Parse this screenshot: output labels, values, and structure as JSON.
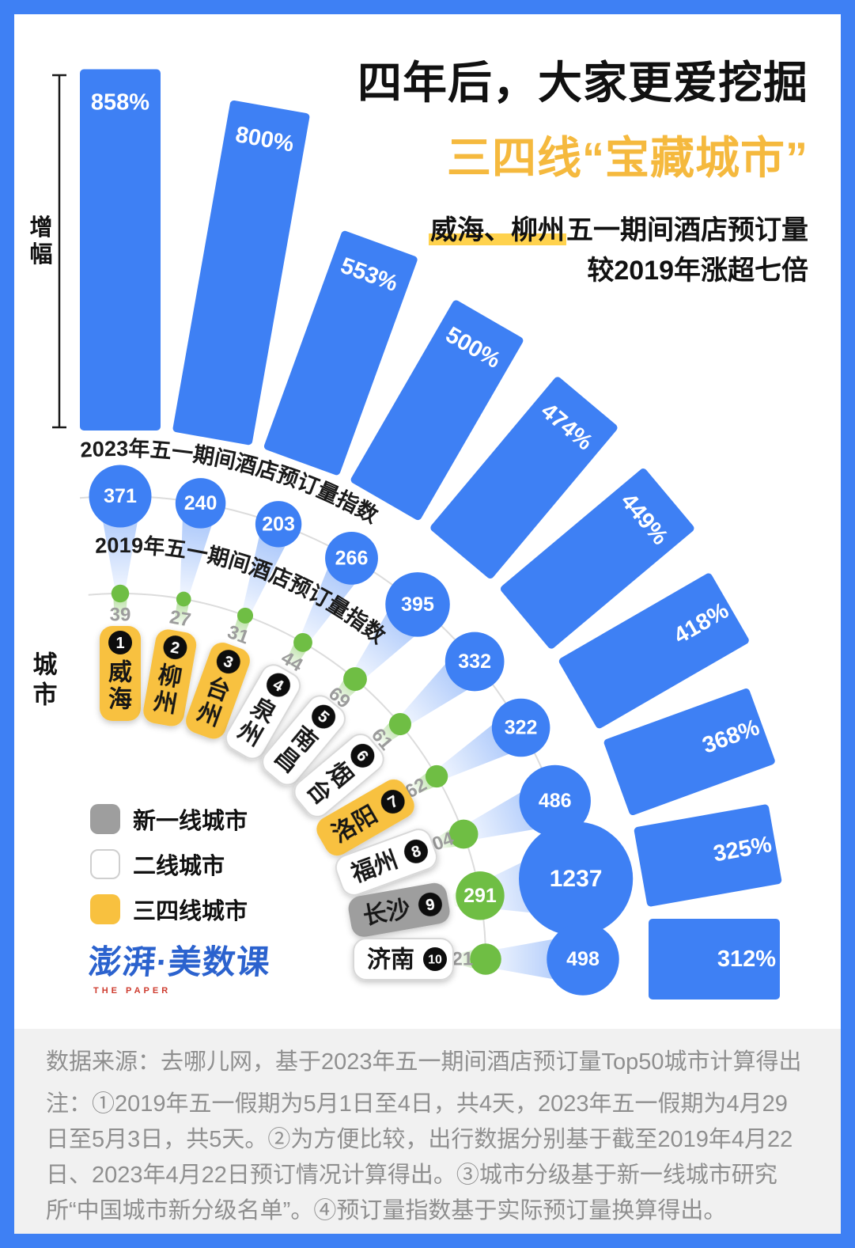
{
  "header": {
    "title_line1": "四年后，大家更爱挖掘",
    "title_line2": "三四线“宝藏城市”",
    "subtitle_highlight": "威海、柳州",
    "subtitle_line1_rest": "五一期间酒店预订量",
    "subtitle_line2": "较2019年涨超七倍"
  },
  "axis": {
    "growth_label": "增幅",
    "city_label": "城市",
    "arc_2023_label": "2023年五一期间酒店预订量指数",
    "arc_2019_label": "2019年五一期间酒店预订量指数"
  },
  "legend": [
    {
      "label": "新一线城市",
      "color": "#9E9E9E",
      "border": ""
    },
    {
      "label": "二线城市",
      "color": "#FFFFFF",
      "border": "#CFCFCF"
    },
    {
      "label": "三四线城市",
      "color": "#F8C13F",
      "border": ""
    }
  ],
  "logo": {
    "text": "澎湃·美数课",
    "sub": "THE PAPER"
  },
  "footer": {
    "source_line": "数据来源：去哪儿网，基于2023年五一期间酒店预订量Top50城市计算得出",
    "note_line": "注：①2019年五一假期为5月1日至4日，共4天，2023年五一假期为4月29日至5月3日，共5天。②为方便比较，出行数据分别基于截至2019年4月22日、2023年4月22日预订情况计算得出。③城市分级基于新一线城市研究所“中国城市新分级名单”。④预订量指数基于实际预订量换算得出。"
  },
  "colors": {
    "blue": "#3E80F4",
    "green": "#6FBE44",
    "yellow": "#F8C13F",
    "gray_pill": "#9E9E9E",
    "title_yellow": "#F5B93E",
    "highlight": "#FFD24D",
    "arc_line": "#DCDCDC",
    "gray_value_label": "#9C9C9C"
  },
  "chart_data": {
    "type": "radial-fan-bar",
    "growth_unit": "%",
    "cities": [
      {
        "rank": 1,
        "name": "威海",
        "tier": "tier34",
        "growth_pct": 858,
        "index_2023": 371,
        "index_2019": 39
      },
      {
        "rank": 2,
        "name": "柳州",
        "tier": "tier34",
        "growth_pct": 800,
        "index_2023": 240,
        "index_2019": 27
      },
      {
        "rank": 3,
        "name": "台州",
        "tier": "tier34",
        "growth_pct": 553,
        "index_2023": 203,
        "index_2019": 31
      },
      {
        "rank": 4,
        "name": "泉州",
        "tier": "tier2",
        "growth_pct": 500,
        "index_2023": 266,
        "index_2019": 44
      },
      {
        "rank": 5,
        "name": "南昌",
        "tier": "tier2",
        "growth_pct": 474,
        "index_2023": 395,
        "index_2019": 69
      },
      {
        "rank": 6,
        "name": "烟台",
        "tier": "tier2",
        "growth_pct": 449,
        "index_2023": 332,
        "index_2019": 61
      },
      {
        "rank": 7,
        "name": "洛阳",
        "tier": "tier34",
        "growth_pct": 418,
        "index_2023": 322,
        "index_2019": 62
      },
      {
        "rank": 8,
        "name": "福州",
        "tier": "tier2",
        "growth_pct": 368,
        "index_2023": 486,
        "index_2019": 104
      },
      {
        "rank": 9,
        "name": "长沙",
        "tier": "new1",
        "growth_pct": 325,
        "index_2023": 1237,
        "index_2019": 291
      },
      {
        "rank": 10,
        "name": "济南",
        "tier": "tier2",
        "growth_pct": 312,
        "index_2023": 498,
        "index_2019": 121
      }
    ]
  }
}
